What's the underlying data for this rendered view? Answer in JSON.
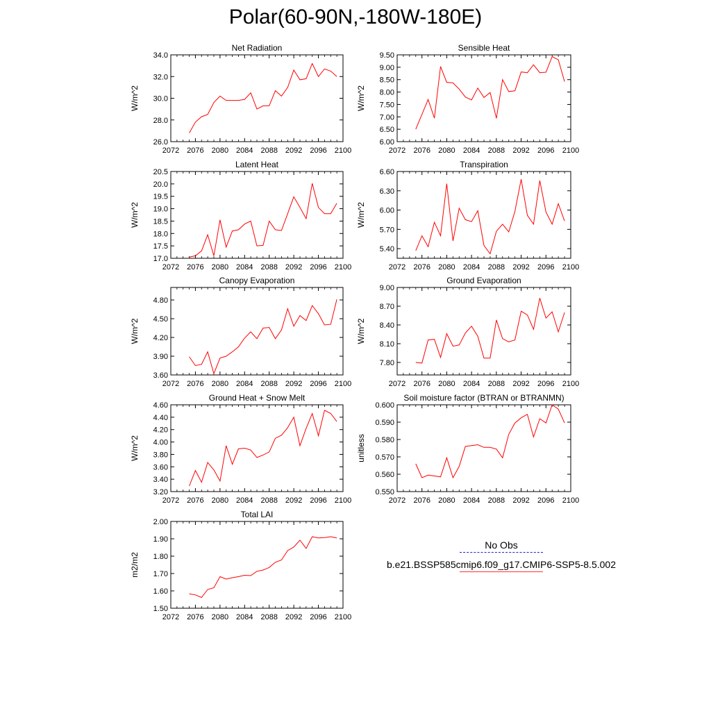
{
  "title": "Polar(60-90N,-180W-180E)",
  "x_axis": {
    "range": [
      2072,
      2100
    ],
    "ticks": [
      2072,
      2076,
      2080,
      2084,
      2088,
      2092,
      2096,
      2100
    ]
  },
  "line_color": "#ff0000",
  "chart_data": [
    {
      "type": "line",
      "title": "Net Radiation",
      "ylabel": "W/m^2",
      "ylim": [
        26.0,
        34.0
      ],
      "yticks": [
        "26.0",
        "28.0",
        "30.0",
        "32.0",
        "34.0"
      ],
      "x": [
        2075,
        2076,
        2077,
        2078,
        2079,
        2080,
        2081,
        2082,
        2083,
        2084,
        2085,
        2086,
        2087,
        2088,
        2089,
        2090,
        2091,
        2092,
        2093,
        2094,
        2095,
        2096,
        2097,
        2098,
        2099
      ],
      "values": [
        26.8,
        27.8,
        28.3,
        28.5,
        29.6,
        30.2,
        29.8,
        29.8,
        29.8,
        29.9,
        30.5,
        29.0,
        29.3,
        29.3,
        30.7,
        30.2,
        31.0,
        32.6,
        31.7,
        31.8,
        33.2,
        32.0,
        32.7,
        32.5,
        32.0
      ]
    },
    {
      "type": "line",
      "title": "Sensible Heat",
      "ylabel": "W/m^2",
      "ylim": [
        6.0,
        9.5
      ],
      "yticks": [
        "6.00",
        "6.50",
        "7.00",
        "7.50",
        "8.00",
        "8.50",
        "9.00",
        "9.50"
      ],
      "x": [
        2075,
        2076,
        2077,
        2078,
        2079,
        2080,
        2081,
        2082,
        2083,
        2084,
        2085,
        2086,
        2087,
        2088,
        2089,
        2090,
        2091,
        2092,
        2093,
        2094,
        2095,
        2096,
        2097,
        2098,
        2099
      ],
      "values": [
        6.5,
        7.1,
        7.7,
        6.95,
        9.03,
        8.39,
        8.37,
        8.12,
        7.8,
        7.68,
        8.16,
        7.78,
        7.98,
        6.94,
        8.5,
        8.02,
        8.05,
        8.81,
        8.78,
        9.1,
        8.78,
        8.8,
        9.43,
        9.3,
        8.42
      ]
    },
    {
      "type": "line",
      "title": "Latent Heat",
      "ylabel": "W/m^2",
      "ylim": [
        17.0,
        20.5
      ],
      "yticks": [
        "17.0",
        "17.5",
        "18.0",
        "18.5",
        "19.0",
        "19.5",
        "20.0",
        "20.5"
      ],
      "x": [
        2075,
        2076,
        2077,
        2078,
        2079,
        2080,
        2081,
        2082,
        2083,
        2084,
        2085,
        2086,
        2087,
        2088,
        2089,
        2090,
        2091,
        2092,
        2093,
        2094,
        2095,
        2096,
        2097,
        2098,
        2099
      ],
      "values": [
        17.05,
        17.1,
        17.3,
        17.95,
        17.1,
        18.55,
        17.45,
        18.1,
        18.15,
        18.38,
        18.5,
        17.5,
        17.52,
        18.5,
        18.15,
        18.12,
        18.8,
        19.48,
        19.05,
        18.6,
        20.02,
        19.05,
        18.8,
        18.8,
        19.22
      ]
    },
    {
      "type": "line",
      "title": "Transpiration",
      "ylabel": "W/m^2",
      "ylim": [
        5.25,
        6.6
      ],
      "yticks": [
        "5.40",
        "5.70",
        "6.00",
        "6.30",
        "6.60"
      ],
      "x": [
        2075,
        2076,
        2077,
        2078,
        2079,
        2080,
        2081,
        2082,
        2083,
        2084,
        2085,
        2086,
        2087,
        2088,
        2089,
        2090,
        2091,
        2092,
        2093,
        2094,
        2095,
        2096,
        2097,
        2098,
        2099
      ],
      "values": [
        5.37,
        5.6,
        5.43,
        5.81,
        5.6,
        6.41,
        5.52,
        6.03,
        5.85,
        5.82,
        5.99,
        5.45,
        5.32,
        5.67,
        5.78,
        5.66,
        5.98,
        6.48,
        5.92,
        5.78,
        6.46,
        5.97,
        5.78,
        6.1,
        5.83
      ]
    },
    {
      "type": "line",
      "title": "Canopy Evaporation",
      "ylabel": "W/m^2",
      "ylim": [
        3.6,
        5.0
      ],
      "yticks": [
        "3.60",
        "3.90",
        "4.20",
        "4.50",
        "4.80"
      ],
      "x": [
        2075,
        2076,
        2077,
        2078,
        2079,
        2080,
        2081,
        2082,
        2083,
        2084,
        2085,
        2086,
        2087,
        2088,
        2089,
        2090,
        2091,
        2092,
        2093,
        2094,
        2095,
        2096,
        2097,
        2098,
        2099
      ],
      "values": [
        3.89,
        3.75,
        3.77,
        3.97,
        3.62,
        3.87,
        3.9,
        3.97,
        4.05,
        4.19,
        4.29,
        4.18,
        4.35,
        4.36,
        4.18,
        4.32,
        4.66,
        4.38,
        4.55,
        4.47,
        4.71,
        4.58,
        4.4,
        4.41,
        4.81
      ]
    },
    {
      "type": "line",
      "title": "Ground Evaporation",
      "ylabel": "W/m^2",
      "ylim": [
        7.6,
        9.0
      ],
      "yticks": [
        "7.80",
        "8.10",
        "8.40",
        "8.70",
        "9.00"
      ],
      "x": [
        2075,
        2076,
        2077,
        2078,
        2079,
        2080,
        2081,
        2082,
        2083,
        2084,
        2085,
        2086,
        2087,
        2088,
        2089,
        2090,
        2091,
        2092,
        2093,
        2094,
        2095,
        2096,
        2097,
        2098,
        2099
      ],
      "values": [
        7.8,
        7.79,
        8.16,
        8.17,
        7.88,
        8.26,
        8.06,
        8.08,
        8.27,
        8.38,
        8.22,
        7.87,
        7.87,
        8.48,
        8.18,
        8.13,
        8.16,
        8.62,
        8.56,
        8.33,
        8.83,
        8.51,
        8.61,
        8.29,
        8.6
      ]
    },
    {
      "type": "line",
      "title": "Ground Heat + Snow Melt",
      "ylabel": "W/m^2",
      "ylim": [
        3.2,
        4.6
      ],
      "yticks": [
        "3.20",
        "3.40",
        "3.60",
        "3.80",
        "4.00",
        "4.20",
        "4.40",
        "4.60"
      ],
      "x": [
        2075,
        2076,
        2077,
        2078,
        2079,
        2080,
        2081,
        2082,
        2083,
        2084,
        2085,
        2086,
        2087,
        2088,
        2089,
        2090,
        2091,
        2092,
        2093,
        2094,
        2095,
        2096,
        2097,
        2098,
        2099
      ],
      "values": [
        3.29,
        3.54,
        3.35,
        3.67,
        3.55,
        3.37,
        3.94,
        3.64,
        3.89,
        3.9,
        3.87,
        3.75,
        3.79,
        3.84,
        4.06,
        4.11,
        4.23,
        4.4,
        3.94,
        4.22,
        4.46,
        4.1,
        4.51,
        4.46,
        4.33
      ]
    },
    {
      "type": "line",
      "title": "Soil moisture factor (BTRAN or BTRANMN)",
      "ylabel": "unitless",
      "ylim": [
        0.55,
        0.6
      ],
      "yticks": [
        "0.550",
        "0.560",
        "0.570",
        "0.580",
        "0.590",
        "0.600"
      ],
      "x": [
        2075,
        2076,
        2077,
        2078,
        2079,
        2080,
        2081,
        2082,
        2083,
        2084,
        2085,
        2086,
        2087,
        2088,
        2089,
        2090,
        2091,
        2092,
        2093,
        2094,
        2095,
        2096,
        2097,
        2098,
        2099
      ],
      "values": [
        0.566,
        0.558,
        0.5595,
        0.559,
        0.5585,
        0.5695,
        0.558,
        0.5645,
        0.576,
        0.5765,
        0.577,
        0.5755,
        0.5755,
        0.5745,
        0.5695,
        0.583,
        0.5895,
        0.5925,
        0.5945,
        0.5815,
        0.592,
        0.5895,
        0.6,
        0.5975,
        0.5895
      ]
    },
    {
      "type": "line",
      "title": "Total LAI",
      "ylabel": "m2/m2",
      "ylim": [
        1.5,
        2.0
      ],
      "yticks": [
        "1.50",
        "1.60",
        "1.70",
        "1.80",
        "1.90",
        "2.00"
      ],
      "x": [
        2075,
        2076,
        2077,
        2078,
        2079,
        2080,
        2081,
        2082,
        2083,
        2084,
        2085,
        2086,
        2087,
        2088,
        2089,
        2090,
        2091,
        2092,
        2093,
        2094,
        2095,
        2096,
        2097,
        2098,
        2099
      ],
      "values": [
        1.583,
        1.577,
        1.562,
        1.608,
        1.618,
        1.682,
        1.668,
        1.676,
        1.682,
        1.69,
        1.688,
        1.713,
        1.72,
        1.735,
        1.765,
        1.778,
        1.832,
        1.853,
        1.892,
        1.845,
        1.912,
        1.905,
        1.907,
        1.912,
        1.905
      ]
    }
  ],
  "legend": {
    "entries": [
      {
        "label": "No Obs",
        "style": "dashed",
        "color": "#1f1fd0"
      },
      {
        "label": "b.e21.BSSP585cmip6.f09_g17.CMIP6-SSP5-8.5.002",
        "style": "solid",
        "color": "#ff3333"
      }
    ]
  }
}
